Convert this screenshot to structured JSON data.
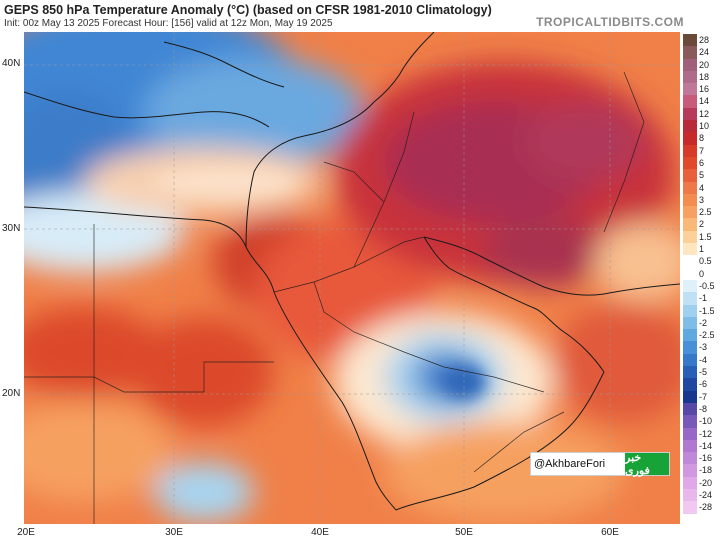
{
  "header": {
    "title": "GEPS 850 hPa Temperature Anomaly (°C) (based on CFSR 1981-2010 Climatology)",
    "subtitle": "Init: 00z May 13 2025   Forecast Hour: [156]   valid at 12z Mon, May 19 2025",
    "brand": "TROPICALTIDBITS.COM"
  },
  "map": {
    "lat_labels": [
      "40N",
      "30N",
      "20N"
    ],
    "lon_labels": [
      "20E",
      "30E",
      "40E",
      "50E",
      "60E"
    ],
    "region": "Middle East / North Africa"
  },
  "colorbar": {
    "labels": [
      "28",
      "24",
      "20",
      "18",
      "16",
      "14",
      "12",
      "10",
      "8",
      "7",
      "6",
      "5",
      "4",
      "3",
      "2.5",
      "2",
      "1.5",
      "1",
      "0.5",
      "0",
      "-0.5",
      "-1",
      "-1.5",
      "-2",
      "-2.5",
      "-3",
      "-4",
      "-5",
      "-6",
      "-7",
      "-8",
      "-10",
      "-12",
      "-14",
      "-16",
      "-18",
      "-20",
      "-24",
      "-28"
    ],
    "colors": [
      "#6b4a3a",
      "#8a5a5a",
      "#a0607a",
      "#b06a8a",
      "#c07898",
      "#c85a7a",
      "#b83a5a",
      "#b82a3a",
      "#c82a2a",
      "#d83a2a",
      "#e04a2a",
      "#e8603a",
      "#f07848",
      "#f48c50",
      "#f8a060",
      "#fab878",
      "#fcd098",
      "#fde6c0",
      "#ffffff",
      "#ffffff",
      "#e0f0fa",
      "#c0e0f5",
      "#a0d0f0",
      "#80bce8",
      "#60a8e0",
      "#4890d8",
      "#3878c8",
      "#2860b8",
      "#2048a0",
      "#183890",
      "#5848a8",
      "#7858b8",
      "#9868c8",
      "#b078d0",
      "#c088d8",
      "#d098e0",
      "#e0a8e8",
      "#e8b8ec",
      "#f0c8f0"
    ]
  },
  "watermark": {
    "handle": "@AkhbareFori",
    "logo_text": "خبر فوری"
  }
}
